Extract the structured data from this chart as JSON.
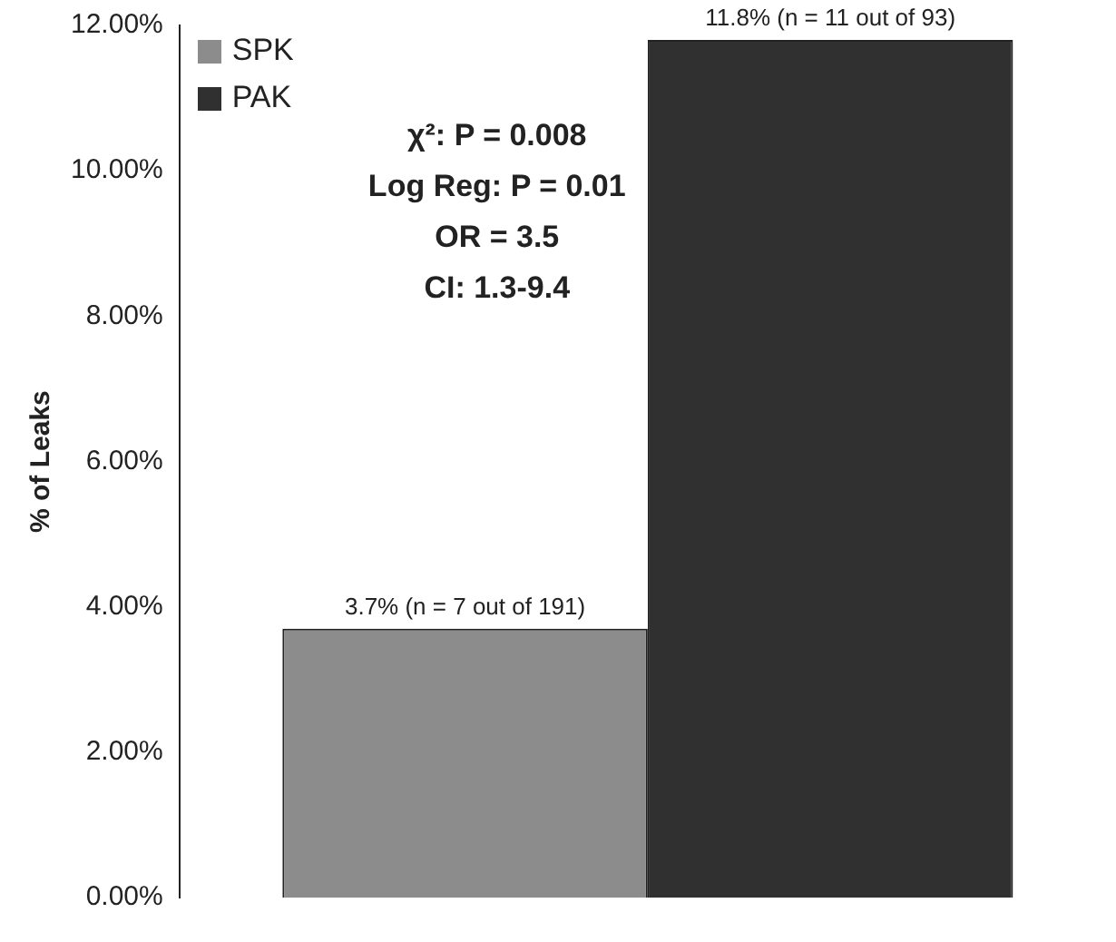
{
  "chart_data": {
    "type": "bar",
    "ylabel": "% of Leaks",
    "categories": [
      null
    ],
    "series": [
      {
        "name": "SPK",
        "color": "#8c8c8c",
        "values": [
          3.7
        ],
        "value_labels": [
          "3.7% (n = 7 out of 191)"
        ]
      },
      {
        "name": "PAK",
        "color": "#303030",
        "values": [
          11.8
        ],
        "value_labels": [
          "11.8% (n = 11 out of 93)"
        ]
      }
    ],
    "ylim": [
      0,
      12
    ],
    "yticks": [
      {
        "value": 0,
        "label": "0.00%"
      },
      {
        "value": 2,
        "label": "2.00%"
      },
      {
        "value": 4,
        "label": "4.00%"
      },
      {
        "value": 6,
        "label": "6.00%"
      },
      {
        "value": 8,
        "label": "8.00%"
      },
      {
        "value": 10,
        "label": "10.00%"
      },
      {
        "value": 12,
        "label": "12.00%"
      }
    ],
    "annotations": [
      "χ²: P = 0.008",
      "Log Reg: P = 0.01",
      "OR = 3.5",
      "CI: 1.3-9.4"
    ],
    "legend": "top left",
    "grid": false
  }
}
